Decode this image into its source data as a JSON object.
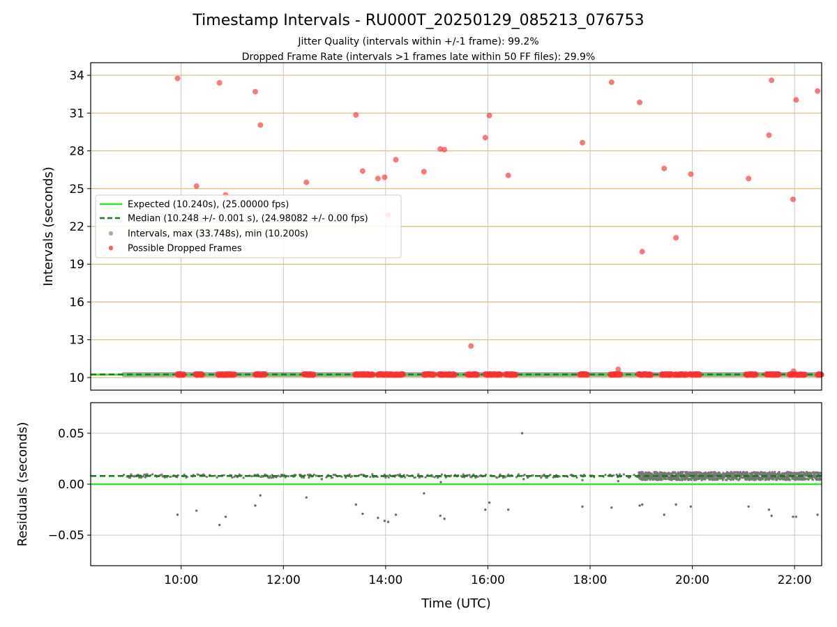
{
  "figure": {
    "title": "Timestamp Intervals - RU000T_20250129_085213_076753",
    "subtitle_line1": "Jitter Quality (intervals within +/-1 frame): 99.2%",
    "subtitle_line2": "Dropped Frame Rate (intervals >1 frames late within 50 FF files): 29.9%"
  },
  "chart_data": [
    {
      "type": "scatter",
      "name": "intervals",
      "ylabel": "Intervals (seconds)",
      "xlim_hours": [
        8.23,
        22.53
      ],
      "ylim": [
        9.0,
        35.0
      ],
      "yticks": [
        10,
        13,
        16,
        19,
        22,
        25,
        28,
        31,
        34
      ],
      "ytick_labels": [
        "10",
        "13",
        "16",
        "19",
        "22",
        "25",
        "28",
        "31",
        "34"
      ],
      "grid": true,
      "horizontal_grid_color": "#d8bd72",
      "legend_position": "center-left",
      "legend": [
        {
          "label": "Expected (10.240s), (25.00000 fps)",
          "kind": "solid-line",
          "color": "#22ee22"
        },
        {
          "label": "Median (10.248 +/- 0.001 s), (24.98082 +/- 0.00 fps)",
          "kind": "dashed-line",
          "color": "#137c13"
        },
        {
          "label": "Intervals, max (33.748s), min (10.200s)",
          "kind": "dot",
          "color": "#999999"
        },
        {
          "label": "Possible Dropped Frames",
          "kind": "dot",
          "color": "#ff4444"
        }
      ],
      "expected_value": 10.24,
      "median_value": 10.248,
      "interval_band": {
        "x_start": 8.88,
        "x_end": 22.53,
        "y": 10.24
      },
      "dropped_frames": [
        {
          "x": 9.93,
          "y": 33.75
        },
        {
          "x": 10.3,
          "y": 25.2
        },
        {
          "x": 10.75,
          "y": 33.4
        },
        {
          "x": 10.87,
          "y": 24.5
        },
        {
          "x": 11.45,
          "y": 32.7
        },
        {
          "x": 11.55,
          "y": 30.05
        },
        {
          "x": 12.45,
          "y": 25.5
        },
        {
          "x": 13.42,
          "y": 30.85
        },
        {
          "x": 13.55,
          "y": 26.4
        },
        {
          "x": 13.85,
          "y": 25.8
        },
        {
          "x": 13.98,
          "y": 25.9
        },
        {
          "x": 14.05,
          "y": 22.9
        },
        {
          "x": 14.2,
          "y": 27.3
        },
        {
          "x": 14.75,
          "y": 26.35
        },
        {
          "x": 15.07,
          "y": 28.15
        },
        {
          "x": 15.15,
          "y": 28.1
        },
        {
          "x": 15.67,
          "y": 12.5
        },
        {
          "x": 15.95,
          "y": 29.05
        },
        {
          "x": 16.03,
          "y": 30.8
        },
        {
          "x": 16.4,
          "y": 26.05
        },
        {
          "x": 17.85,
          "y": 28.65
        },
        {
          "x": 18.42,
          "y": 33.45
        },
        {
          "x": 18.55,
          "y": 10.65
        },
        {
          "x": 18.97,
          "y": 31.85
        },
        {
          "x": 19.02,
          "y": 20.0
        },
        {
          "x": 19.45,
          "y": 26.6
        },
        {
          "x": 19.68,
          "y": 21.1
        },
        {
          "x": 19.97,
          "y": 26.15
        },
        {
          "x": 21.1,
          "y": 25.8
        },
        {
          "x": 21.5,
          "y": 29.25
        },
        {
          "x": 21.55,
          "y": 33.6
        },
        {
          "x": 21.97,
          "y": 24.15
        },
        {
          "x": 22.03,
          "y": 32.05
        },
        {
          "x": 22.45,
          "y": 32.75
        },
        {
          "x": 21.98,
          "y": 10.5
        }
      ],
      "dropped_clusters_on_baseline": [
        [
          9.93,
          10.05
        ],
        [
          10.28,
          10.42
        ],
        [
          10.72,
          11.05
        ],
        [
          11.45,
          11.65
        ],
        [
          12.4,
          12.6
        ],
        [
          13.4,
          13.75
        ],
        [
          13.85,
          14.35
        ],
        [
          14.75,
          14.95
        ],
        [
          15.05,
          15.35
        ],
        [
          15.6,
          15.8
        ],
        [
          15.95,
          16.25
        ],
        [
          16.35,
          16.55
        ],
        [
          17.8,
          17.95
        ],
        [
          18.4,
          18.6
        ],
        [
          18.95,
          19.2
        ],
        [
          19.4,
          19.6
        ],
        [
          19.65,
          19.9
        ],
        [
          19.95,
          20.15
        ],
        [
          21.05,
          21.25
        ],
        [
          21.45,
          21.7
        ],
        [
          21.9,
          22.2
        ],
        [
          22.45,
          22.53
        ]
      ]
    },
    {
      "type": "scatter",
      "name": "residuals",
      "xlabel": "Time (UTC)",
      "ylabel": "Residuals (seconds)",
      "xlim_hours": [
        8.23,
        22.53
      ],
      "ylim": [
        -0.08,
        0.08
      ],
      "yticks": [
        0.05,
        0.0,
        -0.05
      ],
      "ytick_labels": [
        "0.05",
        "0.00",
        "−0.05"
      ],
      "xticks_hours": [
        10,
        12,
        14,
        16,
        18,
        20,
        22
      ],
      "xtick_labels": [
        "10:00",
        "12:00",
        "14:00",
        "16:00",
        "18:00",
        "20:00",
        "22:00"
      ],
      "grid": true,
      "expected_residual": 0.0,
      "median_residual": 0.008,
      "baseline_band_sparse": {
        "x_start": 8.88,
        "x_end": 18.95,
        "y": 0.008
      },
      "baseline_band_dense": {
        "x_start": 18.95,
        "x_end": 22.53,
        "y": 0.008,
        "spread": 0.004
      },
      "points": [
        {
          "x": 9.93,
          "y": -0.03
        },
        {
          "x": 10.3,
          "y": -0.026
        },
        {
          "x": 10.75,
          "y": -0.04
        },
        {
          "x": 10.87,
          "y": -0.032
        },
        {
          "x": 11.45,
          "y": -0.021
        },
        {
          "x": 11.55,
          "y": -0.011
        },
        {
          "x": 12.45,
          "y": -0.013
        },
        {
          "x": 13.42,
          "y": -0.02
        },
        {
          "x": 13.55,
          "y": -0.029
        },
        {
          "x": 13.85,
          "y": -0.033
        },
        {
          "x": 13.98,
          "y": -0.036
        },
        {
          "x": 14.05,
          "y": -0.037
        },
        {
          "x": 14.2,
          "y": -0.03
        },
        {
          "x": 14.75,
          "y": -0.009
        },
        {
          "x": 15.07,
          "y": -0.031
        },
        {
          "x": 15.15,
          "y": -0.034
        },
        {
          "x": 15.95,
          "y": -0.025
        },
        {
          "x": 16.03,
          "y": -0.018
        },
        {
          "x": 16.4,
          "y": -0.025
        },
        {
          "x": 16.67,
          "y": 0.05
        },
        {
          "x": 17.85,
          "y": -0.022
        },
        {
          "x": 18.42,
          "y": -0.023
        },
        {
          "x": 18.97,
          "y": -0.021
        },
        {
          "x": 19.02,
          "y": -0.02
        },
        {
          "x": 19.45,
          "y": -0.03
        },
        {
          "x": 19.68,
          "y": -0.02
        },
        {
          "x": 19.97,
          "y": -0.022
        },
        {
          "x": 21.1,
          "y": -0.022
        },
        {
          "x": 21.5,
          "y": -0.025
        },
        {
          "x": 21.55,
          "y": -0.031
        },
        {
          "x": 21.97,
          "y": -0.032
        },
        {
          "x": 22.03,
          "y": -0.032
        },
        {
          "x": 22.45,
          "y": -0.03
        },
        {
          "x": 15.08,
          "y": 0.002
        },
        {
          "x": 18.55,
          "y": 0.003
        },
        {
          "x": 17.85,
          "y": 0.004
        },
        {
          "x": 12.75,
          "y": 0.005
        },
        {
          "x": 16.7,
          "y": 0.005
        }
      ]
    }
  ]
}
